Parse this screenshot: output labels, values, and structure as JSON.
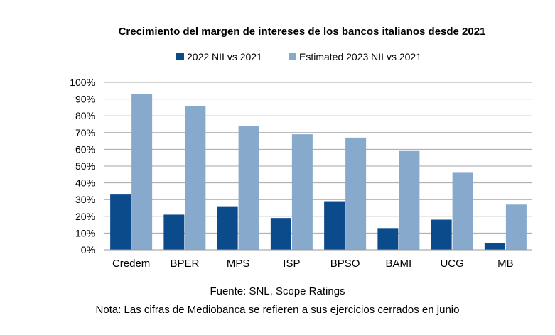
{
  "chart_data": {
    "type": "bar",
    "title": "Crecimiento del margen de intereses de los bancos italianos desde 2021",
    "categories": [
      "Credem",
      "BPER",
      "MPS",
      "ISP",
      "BPSO",
      "BAMI",
      "UCG",
      "MB"
    ],
    "series": [
      {
        "name": "2022 NII vs 2021",
        "color": "#0b4a8b",
        "values": [
          33,
          21,
          26,
          19,
          29,
          13,
          18,
          4
        ]
      },
      {
        "name": "Estimated 2023 NII vs 2021",
        "color": "#86a9cc",
        "values": [
          93,
          86,
          74,
          69,
          67,
          59,
          46,
          27
        ]
      }
    ],
    "yticks": [
      "0%",
      "10%",
      "20%",
      "30%",
      "40%",
      "50%",
      "60%",
      "70%",
      "80%",
      "90%",
      "100%"
    ],
    "ylim": [
      0,
      100
    ],
    "xlabel": "",
    "ylabel": "",
    "grid": true,
    "legend": "top-center"
  },
  "footer": {
    "source": "Fuente: SNL, Scope Ratings",
    "note": "Nota: Las cifras de Mediobanca se refieren a sus ejercicios cerrados en junio"
  }
}
